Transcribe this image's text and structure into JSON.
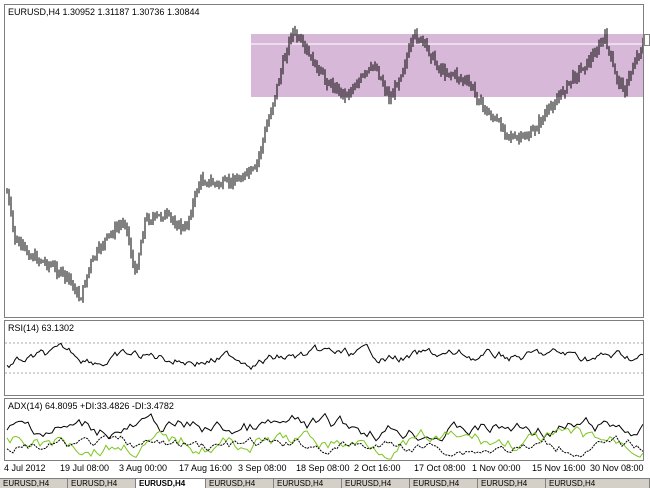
{
  "main_chart": {
    "title": "EURUSD,H4  1.30952 1.31187 1.30736 1.30844",
    "zone_color": "#d8b8d8"
  },
  "rsi_panel": {
    "title": "RSI(14) 63.1302"
  },
  "adx_panel": {
    "title": "ADX(14) 64.8095 +DI:33.4826 -DI:3.4782"
  },
  "x_axis": {
    "labels": [
      "4 Jul 2012",
      "19 Jul 08:00",
      "3 Aug 00:00",
      "17 Aug 16:00",
      "3 Sep 08:00",
      "18 Sep 08:00",
      "2 Oct 16:00",
      "17 Oct 08:00",
      "1 Nov 00:00",
      "15 Nov 16:00",
      "30 Nov 08:00"
    ]
  },
  "bottom_tabs": {
    "items": [
      {
        "label": "EURUSD,H4",
        "active": false
      },
      {
        "label": "EURUSD,H4",
        "active": false
      },
      {
        "label": "EURUSD,H4",
        "active": true
      },
      {
        "label": "EURUSD,H4",
        "active": false
      },
      {
        "label": "EURUSD,H4",
        "active": false
      },
      {
        "label": "EURUSD,H4",
        "active": false
      },
      {
        "label": "EURUSD,H4",
        "active": false
      },
      {
        "label": "EURUSD,H4",
        "active": false
      },
      {
        "label": "EURUSD,H4",
        "active": false
      }
    ]
  }
}
